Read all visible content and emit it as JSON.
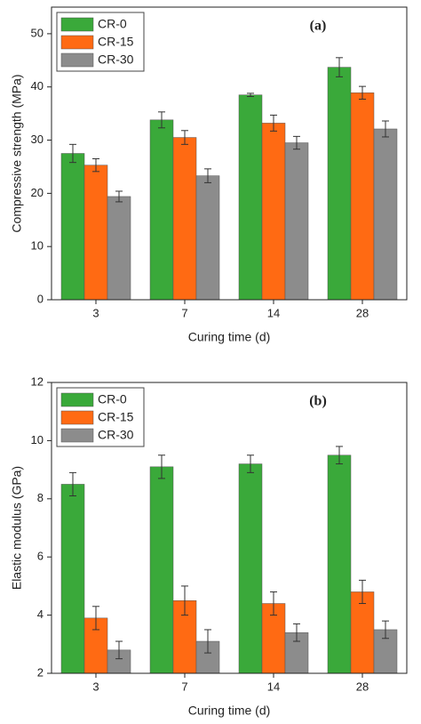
{
  "chart_data": [
    {
      "type": "bar",
      "annotation": "(a)",
      "x_label": "Curing time (d)",
      "y_label": "Compressive strength (MPa)",
      "categories": [
        "3",
        "7",
        "14",
        "28"
      ],
      "series": [
        {
          "name": "CR-0",
          "color": "#3aa93a",
          "values": [
            27.5,
            33.8,
            38.5,
            43.7
          ],
          "errors": [
            1.7,
            1.5,
            0.3,
            1.8
          ]
        },
        {
          "name": "CR-15",
          "color": "#ff6a13",
          "values": [
            25.3,
            30.5,
            33.2,
            38.9
          ],
          "errors": [
            1.2,
            1.3,
            1.5,
            1.2
          ]
        },
        {
          "name": "CR-30",
          "color": "#8c8c8c",
          "values": [
            19.4,
            23.3,
            29.5,
            32.1
          ],
          "errors": [
            1.0,
            1.3,
            1.2,
            1.5
          ]
        }
      ],
      "ylim": [
        0,
        55
      ],
      "yticks": [
        0,
        10,
        20,
        30,
        40,
        50
      ],
      "legend": "top-left"
    },
    {
      "type": "bar",
      "annotation": "(b)",
      "x_label": "Curing time (d)",
      "y_label": "Elastic modulus (GPa)",
      "categories": [
        "3",
        "7",
        "14",
        "28"
      ],
      "series": [
        {
          "name": "CR-0",
          "color": "#3aa93a",
          "values": [
            8.5,
            9.1,
            9.2,
            9.5
          ],
          "errors": [
            0.4,
            0.4,
            0.3,
            0.3
          ]
        },
        {
          "name": "CR-15",
          "color": "#ff6a13",
          "values": [
            3.9,
            4.5,
            4.4,
            4.8
          ],
          "errors": [
            0.4,
            0.5,
            0.4,
            0.4
          ]
        },
        {
          "name": "CR-30",
          "color": "#8c8c8c",
          "values": [
            2.8,
            3.1,
            3.4,
            3.5
          ],
          "errors": [
            0.3,
            0.4,
            0.3,
            0.3
          ]
        }
      ],
      "ylim": [
        2,
        12
      ],
      "yticks": [
        2,
        4,
        6,
        8,
        10,
        12
      ],
      "legend": "top-left"
    }
  ]
}
